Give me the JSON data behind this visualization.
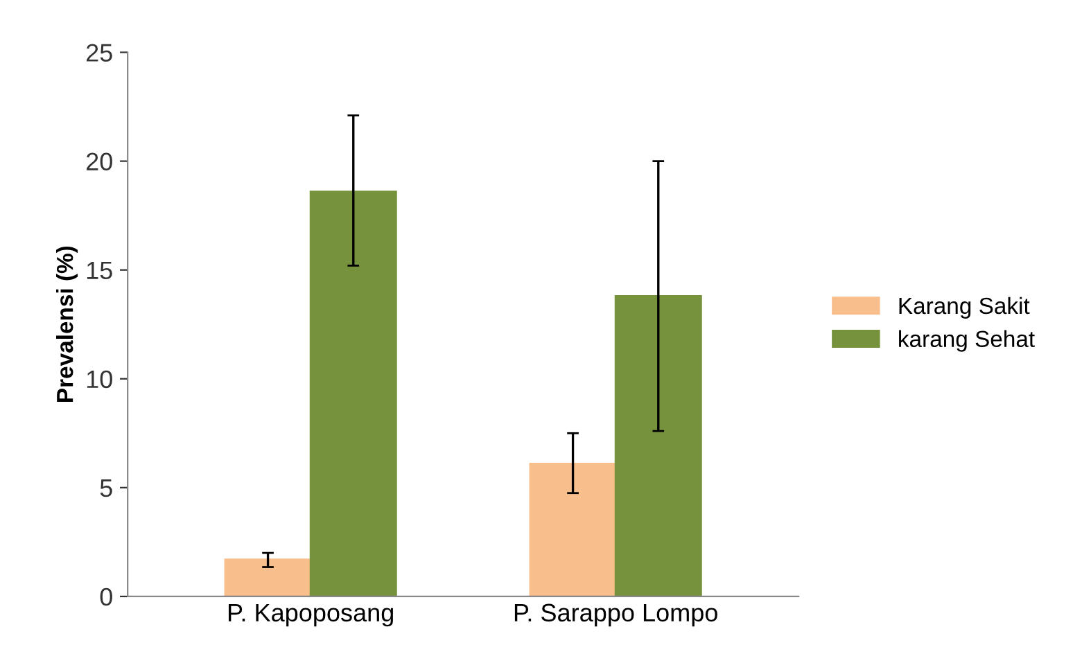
{
  "chart_data": {
    "type": "bar",
    "ylabel": "Prevalensi (%)",
    "categories": [
      "P. Kapoposang",
      "P. Sarappo Lompo"
    ],
    "series": [
      {
        "name": "Karang Sakit",
        "color": "#f8be8c",
        "values": [
          1.7,
          6.1
        ],
        "errors": [
          [
            1.35,
            2.0
          ],
          [
            4.75,
            7.5
          ]
        ]
      },
      {
        "name": "karang Sehat",
        "color": "#76923c",
        "values": [
          18.6,
          13.8
        ],
        "errors": [
          [
            15.2,
            22.1
          ],
          [
            7.6,
            20.0
          ]
        ]
      }
    ],
    "ylim": [
      0,
      25
    ],
    "yticks": [
      0,
      5,
      10,
      15,
      20,
      25
    ],
    "grid": false,
    "legend": "right"
  }
}
